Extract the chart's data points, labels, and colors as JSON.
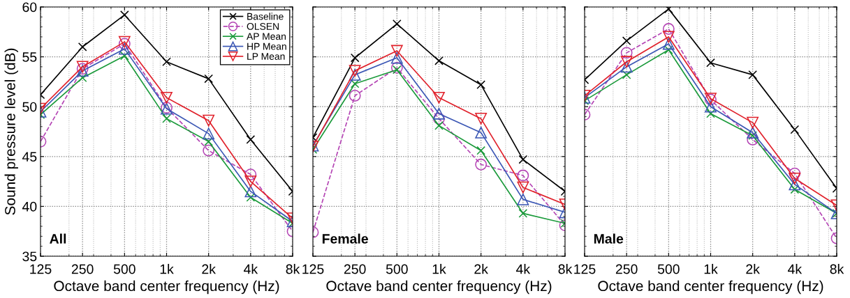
{
  "chart_data": [
    {
      "type": "line",
      "x": [
        125,
        250,
        500,
        1000,
        2000,
        4000,
        8000
      ],
      "log": "x",
      "xlim": [
        125,
        8000
      ],
      "xticks": [
        125,
        250,
        500,
        {
          "value": 1000,
          "label": "1k"
        },
        {
          "value": 2000,
          "label": "2k"
        },
        {
          "value": 4000,
          "label": "4k"
        },
        {
          "value": 8000,
          "label": "8k"
        }
      ],
      "ylim": [
        35,
        60
      ],
      "yticks": [
        35,
        40,
        45,
        50,
        55,
        60
      ],
      "grid": true,
      "legend": "top right",
      "xlabel": "Octave band center frequency (Hz)",
      "ylabel": "Sound pressure level (dB)",
      "annotations": [
        "All"
      ],
      "series": [
        {
          "name": "Baseline",
          "color": "#000000",
          "marker": "cross",
          "line_style": "solid",
          "values": [
            51.2,
            56.0,
            59.2,
            54.5,
            52.8,
            46.7,
            41.5
          ]
        },
        {
          "name": "OLSEN",
          "color": "#b444b4",
          "marker": "circle",
          "line_style": "dashed",
          "values": [
            46.5,
            53.8,
            56.3,
            49.9,
            45.6,
            43.2,
            37.5
          ]
        },
        {
          "name": "AP Mean",
          "color": "#1a9a3a",
          "marker": "cross",
          "line_style": "solid",
          "values": [
            49.2,
            52.9,
            55.1,
            48.8,
            46.5,
            40.9,
            38.3
          ]
        },
        {
          "name": "HP Mean",
          "color": "#3a56b4",
          "marker": "triangle",
          "line_style": "solid",
          "values": [
            49.5,
            53.6,
            55.8,
            49.8,
            47.3,
            41.5,
            38.5
          ]
        },
        {
          "name": "LP Mean",
          "color": "#e0202a",
          "marker": "triangle_down",
          "line_style": "solid",
          "values": [
            49.8,
            54.0,
            56.5,
            50.9,
            48.6,
            42.5,
            38.8
          ]
        }
      ]
    },
    {
      "type": "line",
      "x": [
        125,
        250,
        500,
        1000,
        2000,
        4000,
        8000
      ],
      "log": "x",
      "xlim": [
        125,
        8000
      ],
      "xticks": [
        125,
        250,
        500,
        {
          "value": 1000,
          "label": "1k"
        },
        {
          "value": 2000,
          "label": "2k"
        },
        {
          "value": 4000,
          "label": "4k"
        },
        {
          "value": 8000,
          "label": "8k"
        }
      ],
      "ylim": [
        35,
        60
      ],
      "yticks": [
        35,
        40,
        45,
        50,
        55,
        60
      ],
      "grid": true,
      "tick_labels": "x",
      "xlabel": "Octave band center frequency (Hz)",
      "annotations": [
        "Female"
      ],
      "series": [
        {
          "color": "#000000",
          "marker": "cross",
          "line_style": "solid",
          "values": [
            46.9,
            54.9,
            58.3,
            54.6,
            52.2,
            44.7,
            41.5
          ]
        },
        {
          "color": "#b444b4",
          "marker": "circle",
          "line_style": "dashed",
          "values": [
            37.4,
            51.1,
            53.9,
            48.8,
            44.2,
            43.1,
            38.1
          ]
        },
        {
          "color": "#1a9a3a",
          "marker": "cross",
          "line_style": "solid",
          "values": [
            45.7,
            52.3,
            53.7,
            48.1,
            45.6,
            39.3,
            38.3
          ]
        },
        {
          "color": "#3a56b4",
          "marker": "triangle",
          "line_style": "solid",
          "values": [
            46.1,
            53.2,
            54.9,
            49.3,
            47.4,
            40.7,
            39.4
          ]
        },
        {
          "color": "#e0202a",
          "marker": "triangle_down",
          "line_style": "solid",
          "values": [
            46.0,
            53.6,
            55.6,
            50.9,
            48.8,
            41.9,
            40.2
          ]
        }
      ]
    },
    {
      "type": "line",
      "x": [
        125,
        250,
        500,
        1000,
        2000,
        4000,
        8000
      ],
      "log": "x",
      "xlim": [
        125,
        8000
      ],
      "xticks": [
        125,
        250,
        500,
        {
          "value": 1000,
          "label": "1k"
        },
        {
          "value": 2000,
          "label": "2k"
        },
        {
          "value": 4000,
          "label": "4k"
        },
        {
          "value": 8000,
          "label": "8k"
        }
      ],
      "ylim": [
        35,
        60
      ],
      "yticks": [
        35,
        40,
        45,
        50,
        55,
        60
      ],
      "grid": true,
      "tick_labels": "x",
      "xlabel": "Octave band center frequency (Hz)",
      "annotations": [
        "Male"
      ],
      "series": [
        {
          "color": "#000000",
          "marker": "cross",
          "line_style": "solid",
          "values": [
            52.7,
            56.6,
            59.8,
            54.4,
            53.2,
            47.7,
            41.8
          ]
        },
        {
          "color": "#b444b4",
          "marker": "circle",
          "line_style": "dashed",
          "values": [
            49.2,
            55.4,
            57.8,
            50.7,
            46.7,
            43.3,
            36.8
          ]
        },
        {
          "color": "#1a9a3a",
          "marker": "cross",
          "line_style": "solid",
          "values": [
            50.6,
            53.2,
            55.7,
            49.3,
            47.1,
            41.7,
            39.3
          ]
        },
        {
          "color": "#3a56b4",
          "marker": "triangle",
          "line_style": "solid",
          "values": [
            50.9,
            54.0,
            56.3,
            50.0,
            47.4,
            42.2,
            39.3
          ]
        },
        {
          "color": "#e0202a",
          "marker": "triangle_down",
          "line_style": "solid",
          "values": [
            51.1,
            54.5,
            57.0,
            50.8,
            48.4,
            42.8,
            40.1
          ]
        }
      ]
    }
  ]
}
